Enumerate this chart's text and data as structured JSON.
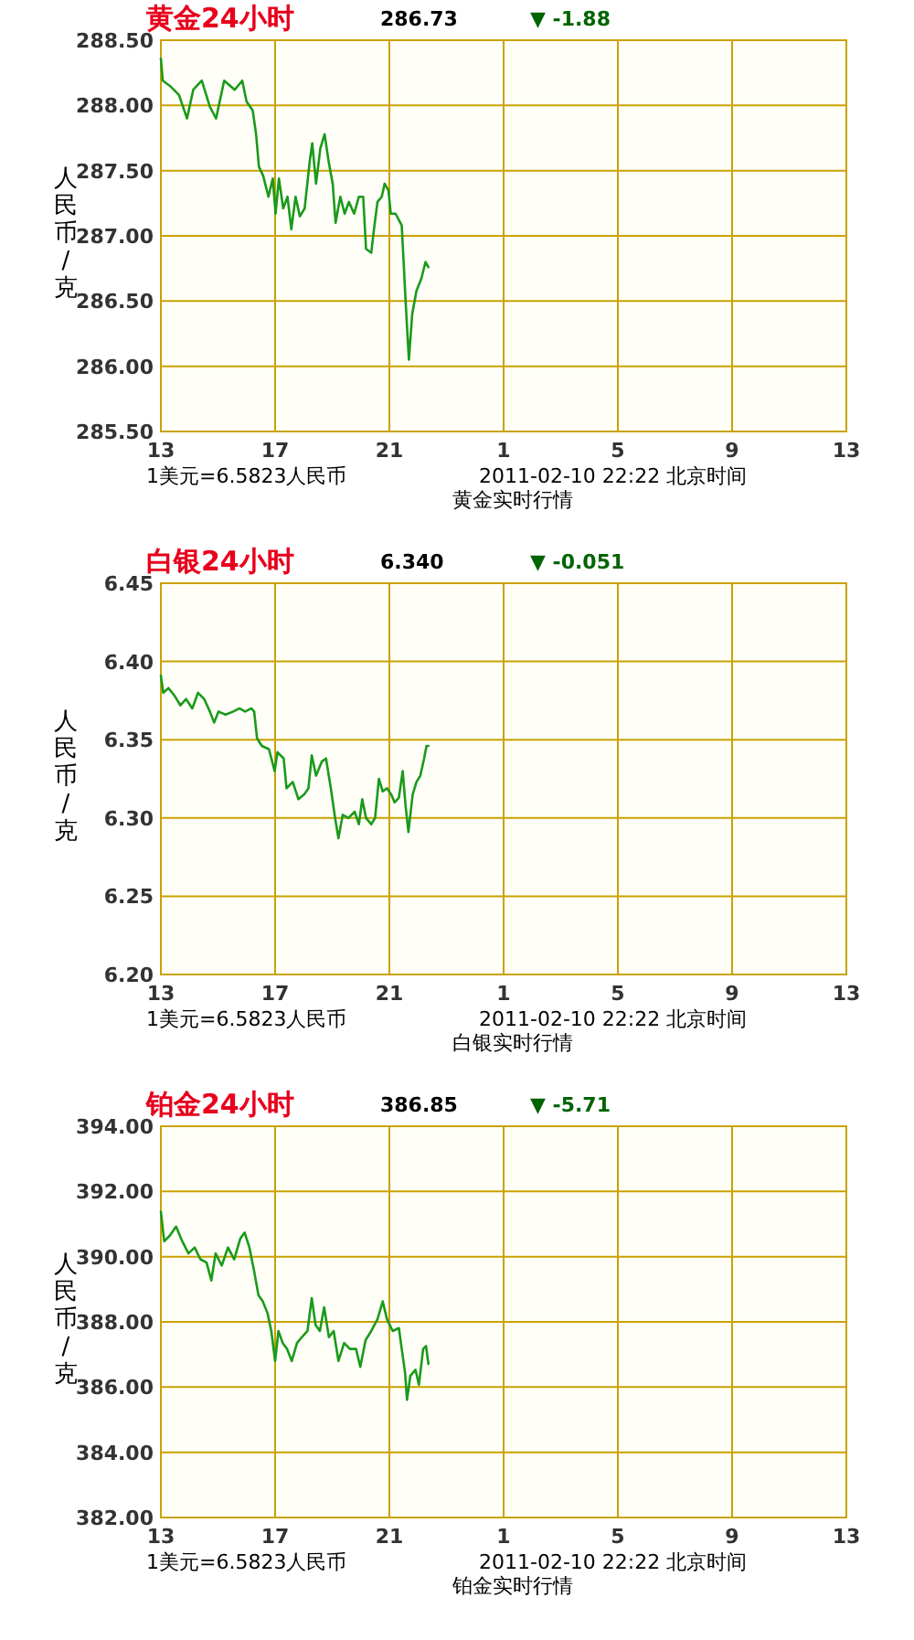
{
  "chart_data": [
    {
      "type": "line",
      "title": "黄金24小时",
      "ylabel": "人民币/克",
      "xlabel": "黄金实时行情",
      "annotations": [
        "286.73",
        "▼ -1.88",
        "1美元=6.5823人民币",
        "2011-02-10 22:22 北京时间"
      ],
      "xlim": [
        "2011-02-10T13:00",
        "2011-02-11T13:00"
      ],
      "xticks": [
        {
          "value": "2011-02-10T13:00",
          "label": "13"
        },
        {
          "value": "2011-02-10T17:00",
          "label": "17"
        },
        {
          "value": "2011-02-10T21:00",
          "label": "21"
        },
        {
          "value": "2011-02-11T01:00",
          "label": "1"
        },
        {
          "value": "2011-02-11T05:00",
          "label": "5"
        },
        {
          "value": "2011-02-11T09:00",
          "label": "9"
        },
        {
          "value": "2011-02-11T13:00",
          "label": "13"
        }
      ],
      "ylim": [
        285.5,
        288.5
      ],
      "yticks": [
        {
          "value": 285.5,
          "label": "285.50"
        },
        {
          "value": 286,
          "label": "286.00"
        },
        {
          "value": 286.5,
          "label": "286.50"
        },
        {
          "value": 287,
          "label": "287.00"
        },
        {
          "value": 287.5,
          "label": "287.50"
        },
        {
          "value": 288,
          "label": "288.00"
        },
        {
          "value": 288.5,
          "label": "288.50"
        }
      ],
      "grid": true,
      "series": [
        {
          "color": "#1a9a1a",
          "x": [
            "2011-02-10T13:00",
            "2011-02-10T13:04",
            "2011-02-10T13:19",
            "2011-02-10T13:38",
            "2011-02-10T13:55",
            "2011-02-10T14:08",
            "2011-02-10T14:26",
            "2011-02-10T14:43",
            "2011-02-10T14:56",
            "2011-02-10T15:13",
            "2011-02-10T15:35",
            "2011-02-10T15:51",
            "2011-02-10T16:00",
            "2011-02-10T16:13",
            "2011-02-10T16:20",
            "2011-02-10T16:26",
            "2011-02-10T16:35",
            "2011-02-10T16:46",
            "2011-02-10T16:55",
            "2011-02-10T17:01",
            "2011-02-10T17:08",
            "2011-02-10T17:17",
            "2011-02-10T17:26",
            "2011-02-10T17:34",
            "2011-02-10T17:43",
            "2011-02-10T17:52",
            "2011-02-10T18:02",
            "2011-02-10T18:13",
            "2011-02-10T18:18",
            "2011-02-10T18:26",
            "2011-02-10T18:35",
            "2011-02-10T18:44",
            "2011-02-10T18:52",
            "2011-02-10T19:01",
            "2011-02-10T19:07",
            "2011-02-10T19:17",
            "2011-02-10T19:26",
            "2011-02-10T19:35",
            "2011-02-10T19:46",
            "2011-02-10T19:56",
            "2011-02-10T20:05",
            "2011-02-10T20:11",
            "2011-02-10T20:22",
            "2011-02-10T20:27",
            "2011-02-10T20:35",
            "2011-02-10T20:44",
            "2011-02-10T20:50",
            "2011-02-10T20:58",
            "2011-02-10T21:03",
            "2011-02-10T21:13",
            "2011-02-10T21:26",
            "2011-02-10T21:35",
            "2011-02-10T21:41",
            "2011-02-10T21:48",
            "2011-02-10T21:57",
            "2011-02-10T22:07",
            "2011-02-10T22:16",
            "2011-02-10T22:22"
          ],
          "values": [
            288.36,
            288.19,
            288.15,
            288.08,
            287.9,
            288.12,
            288.19,
            287.99,
            287.9,
            288.19,
            288.12,
            288.19,
            288.03,
            287.96,
            287.78,
            287.53,
            287.46,
            287.3,
            287.44,
            287.17,
            287.44,
            287.21,
            287.3,
            287.05,
            287.3,
            287.15,
            287.21,
            287.58,
            287.71,
            287.4,
            287.67,
            287.78,
            287.58,
            287.4,
            287.1,
            287.3,
            287.17,
            287.26,
            287.17,
            287.3,
            287.3,
            286.9,
            286.87,
            287.03,
            287.26,
            287.3,
            287.4,
            287.35,
            287.17,
            287.17,
            287.08,
            286.44,
            286.05,
            286.4,
            286.58,
            286.67,
            286.8,
            286.76
          ]
        }
      ]
    },
    {
      "type": "line",
      "title": "白银24小时",
      "ylabel": "人民币/克",
      "xlabel": "白银实时行情",
      "annotations": [
        "6.340",
        "▼ -0.051",
        "1美元=6.5823人民币",
        "2011-02-10 22:22 北京时间"
      ],
      "xlim": [
        "2011-02-10T13:00",
        "2011-02-11T13:00"
      ],
      "xticks": [
        {
          "value": "2011-02-10T13:00",
          "label": "13"
        },
        {
          "value": "2011-02-10T17:00",
          "label": "17"
        },
        {
          "value": "2011-02-10T21:00",
          "label": "21"
        },
        {
          "value": "2011-02-11T01:00",
          "label": "1"
        },
        {
          "value": "2011-02-11T05:00",
          "label": "5"
        },
        {
          "value": "2011-02-11T09:00",
          "label": "9"
        },
        {
          "value": "2011-02-11T13:00",
          "label": "13"
        }
      ],
      "ylim": [
        6.2,
        6.45
      ],
      "yticks": [
        {
          "value": 6.2,
          "label": "6.20"
        },
        {
          "value": 6.25,
          "label": "6.25"
        },
        {
          "value": 6.3,
          "label": "6.30"
        },
        {
          "value": 6.35,
          "label": "6.35"
        },
        {
          "value": 6.4,
          "label": "6.40"
        },
        {
          "value": 6.45,
          "label": "6.45"
        }
      ],
      "grid": true,
      "series": [
        {
          "color": "#1a9a1a",
          "x": [
            "2011-02-10T13:00",
            "2011-02-10T13:05",
            "2011-02-10T13:16",
            "2011-02-10T13:29",
            "2011-02-10T13:41",
            "2011-02-10T13:53",
            "2011-02-10T14:06",
            "2011-02-10T14:18",
            "2011-02-10T14:31",
            "2011-02-10T14:43",
            "2011-02-10T14:52",
            "2011-02-10T15:01",
            "2011-02-10T15:16",
            "2011-02-10T15:32",
            "2011-02-10T15:45",
            "2011-02-10T15:57",
            "2011-02-10T16:10",
            "2011-02-10T16:16",
            "2011-02-10T16:22",
            "2011-02-10T16:32",
            "2011-02-10T16:47",
            "2011-02-10T16:59",
            "2011-02-10T17:05",
            "2011-02-10T17:18",
            "2011-02-10T17:24",
            "2011-02-10T17:37",
            "2011-02-10T17:49",
            "2011-02-10T18:01",
            "2011-02-10T18:10",
            "2011-02-10T18:17",
            "2011-02-10T18:26",
            "2011-02-10T18:38",
            "2011-02-10T18:47",
            "2011-02-10T18:57",
            "2011-02-10T19:06",
            "2011-02-10T19:13",
            "2011-02-10T19:22",
            "2011-02-10T19:34",
            "2011-02-10T19:47",
            "2011-02-10T19:56",
            "2011-02-10T20:03",
            "2011-02-10T20:11",
            "2011-02-10T20:22",
            "2011-02-10T20:30",
            "2011-02-10T20:38",
            "2011-02-10T20:46",
            "2011-02-10T20:55",
            "2011-02-10T21:04",
            "2011-02-10T21:11",
            "2011-02-10T21:20",
            "2011-02-10T21:28",
            "2011-02-10T21:34",
            "2011-02-10T21:40",
            "2011-02-10T21:49",
            "2011-02-10T21:57",
            "2011-02-10T22:05",
            "2011-02-10T22:13",
            "2011-02-10T22:18",
            "2011-02-10T22:22"
          ],
          "values": [
            6.391,
            6.38,
            6.383,
            6.378,
            6.372,
            6.376,
            6.37,
            6.38,
            6.376,
            6.368,
            6.361,
            6.368,
            6.366,
            6.368,
            6.37,
            6.368,
            6.37,
            6.368,
            6.351,
            6.346,
            6.344,
            6.33,
            6.342,
            6.338,
            6.319,
            6.323,
            6.312,
            6.315,
            6.319,
            6.34,
            6.327,
            6.336,
            6.338,
            6.319,
            6.3,
            6.287,
            6.302,
            6.3,
            6.304,
            6.296,
            6.312,
            6.3,
            6.296,
            6.3,
            6.325,
            6.317,
            6.319,
            6.315,
            6.31,
            6.313,
            6.33,
            6.308,
            6.291,
            6.315,
            6.323,
            6.327,
            6.338,
            6.346,
            6.346
          ]
        }
      ]
    },
    {
      "type": "line",
      "title": "铂金24小时",
      "ylabel": "人民币/克",
      "xlabel": "铂金实时行情",
      "annotations": [
        "386.85",
        "▼ -5.71",
        "1美元=6.5823人民币",
        "2011-02-10 22:22 北京时间"
      ],
      "xlim": [
        "2011-02-10T13:00",
        "2011-02-11T13:00"
      ],
      "xticks": [
        {
          "value": "2011-02-10T13:00",
          "label": "13"
        },
        {
          "value": "2011-02-10T17:00",
          "label": "17"
        },
        {
          "value": "2011-02-10T21:00",
          "label": "21"
        },
        {
          "value": "2011-02-11T01:00",
          "label": "1"
        },
        {
          "value": "2011-02-11T05:00",
          "label": "5"
        },
        {
          "value": "2011-02-11T09:00",
          "label": "9"
        },
        {
          "value": "2011-02-11T13:00",
          "label": "13"
        }
      ],
      "ylim": [
        382,
        394
      ],
      "yticks": [
        {
          "value": 382,
          "label": "382.00"
        },
        {
          "value": 384,
          "label": "384.00"
        },
        {
          "value": 386,
          "label": "386.00"
        },
        {
          "value": 388,
          "label": "388.00"
        },
        {
          "value": 390,
          "label": "390.00"
        },
        {
          "value": 392,
          "label": "392.00"
        },
        {
          "value": 394,
          "label": "394.00"
        }
      ],
      "grid": true,
      "series": [
        {
          "color": "#1a9a1a",
          "x": [
            "2011-02-10T13:00",
            "2011-02-10T13:07",
            "2011-02-10T13:19",
            "2011-02-10T13:32",
            "2011-02-10T13:45",
            "2011-02-10T13:58",
            "2011-02-10T14:11",
            "2011-02-10T14:23",
            "2011-02-10T14:36",
            "2011-02-10T14:46",
            "2011-02-10T14:55",
            "2011-02-10T15:08",
            "2011-02-10T15:21",
            "2011-02-10T15:34",
            "2011-02-10T15:47",
            "2011-02-10T15:56",
            "2011-02-10T16:06",
            "2011-02-10T16:16",
            "2011-02-10T16:25",
            "2011-02-10T16:34",
            "2011-02-10T16:44",
            "2011-02-10T16:52",
            "2011-02-10T17:00",
            "2011-02-10T17:07",
            "2011-02-10T17:16",
            "2011-02-10T17:25",
            "2011-02-10T17:35",
            "2011-02-10T17:46",
            "2011-02-10T17:56",
            "2011-02-10T18:08",
            "2011-02-10T18:17",
            "2011-02-10T18:25",
            "2011-02-10T18:34",
            "2011-02-10T18:43",
            "2011-02-10T18:53",
            "2011-02-10T19:03",
            "2011-02-10T19:13",
            "2011-02-10T19:25",
            "2011-02-10T19:37",
            "2011-02-10T19:50",
            "2011-02-10T19:59",
            "2011-02-10T20:10",
            "2011-02-10T20:22",
            "2011-02-10T20:35",
            "2011-02-10T20:46",
            "2011-02-10T20:55",
            "2011-02-10T21:07",
            "2011-02-10T21:20",
            "2011-02-10T21:26",
            "2011-02-10T21:33",
            "2011-02-10T21:37",
            "2011-02-10T21:44",
            "2011-02-10T21:55",
            "2011-02-10T22:02",
            "2011-02-10T22:11",
            "2011-02-10T22:17",
            "2011-02-10T22:22"
          ],
          "values": [
            391.38,
            390.47,
            390.65,
            390.92,
            390.47,
            390.1,
            390.28,
            389.92,
            389.82,
            389.27,
            390.1,
            389.73,
            390.28,
            389.92,
            390.56,
            390.74,
            390.28,
            389.55,
            388.82,
            388.63,
            388.27,
            387.72,
            386.8,
            387.72,
            387.35,
            387.17,
            386.8,
            387.35,
            387.53,
            387.72,
            388.73,
            387.9,
            387.72,
            388.45,
            387.53,
            387.72,
            386.8,
            387.35,
            387.17,
            387.17,
            386.62,
            387.44,
            387.72,
            388.08,
            388.63,
            388.08,
            387.72,
            387.81,
            387.17,
            386.44,
            385.61,
            386.34,
            386.53,
            386.07,
            387.17,
            387.26,
            386.71
          ]
        }
      ]
    }
  ]
}
